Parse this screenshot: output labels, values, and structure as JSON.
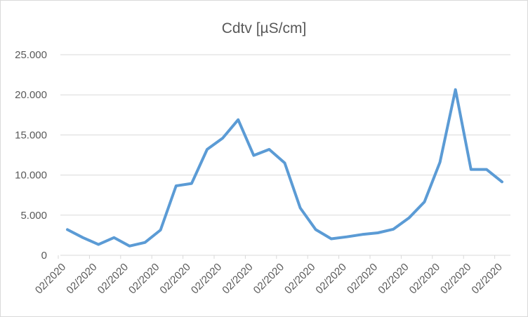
{
  "chart_data": {
    "type": "line",
    "title": "Cdtv [µS/cm]",
    "xlabel": "",
    "ylabel": "",
    "ylim": [
      0,
      25000
    ],
    "y_ticks": [
      {
        "value": 0,
        "label": "0"
      },
      {
        "value": 5000,
        "label": "5.000"
      },
      {
        "value": 10000,
        "label": "10.000"
      },
      {
        "value": 15000,
        "label": "15.000"
      },
      {
        "value": 20000,
        "label": "20.000"
      },
      {
        "value": 25000,
        "label": "25.000"
      }
    ],
    "x_tick_labels": [
      "02/2020",
      "02/2020",
      "02/2020",
      "02/2020",
      "02/2020",
      "02/2020",
      "02/2020",
      "02/2020",
      "02/2020",
      "02/2020",
      "02/2020",
      "02/2020",
      "02/2020",
      "02/2020",
      "02/2020"
    ],
    "gridlines": true,
    "legend": "none",
    "series_color": "#5b9bd5",
    "series": [
      {
        "values": [
          3200,
          2200,
          1350,
          2200,
          1150,
          1600,
          3150,
          8650,
          8950,
          13200,
          14600,
          16900,
          12450,
          13200,
          11500,
          5900,
          3200,
          2050,
          2300,
          2600,
          2800,
          3250,
          4650,
          6650,
          11600,
          20650,
          10700,
          10700,
          9150
        ]
      }
    ]
  }
}
